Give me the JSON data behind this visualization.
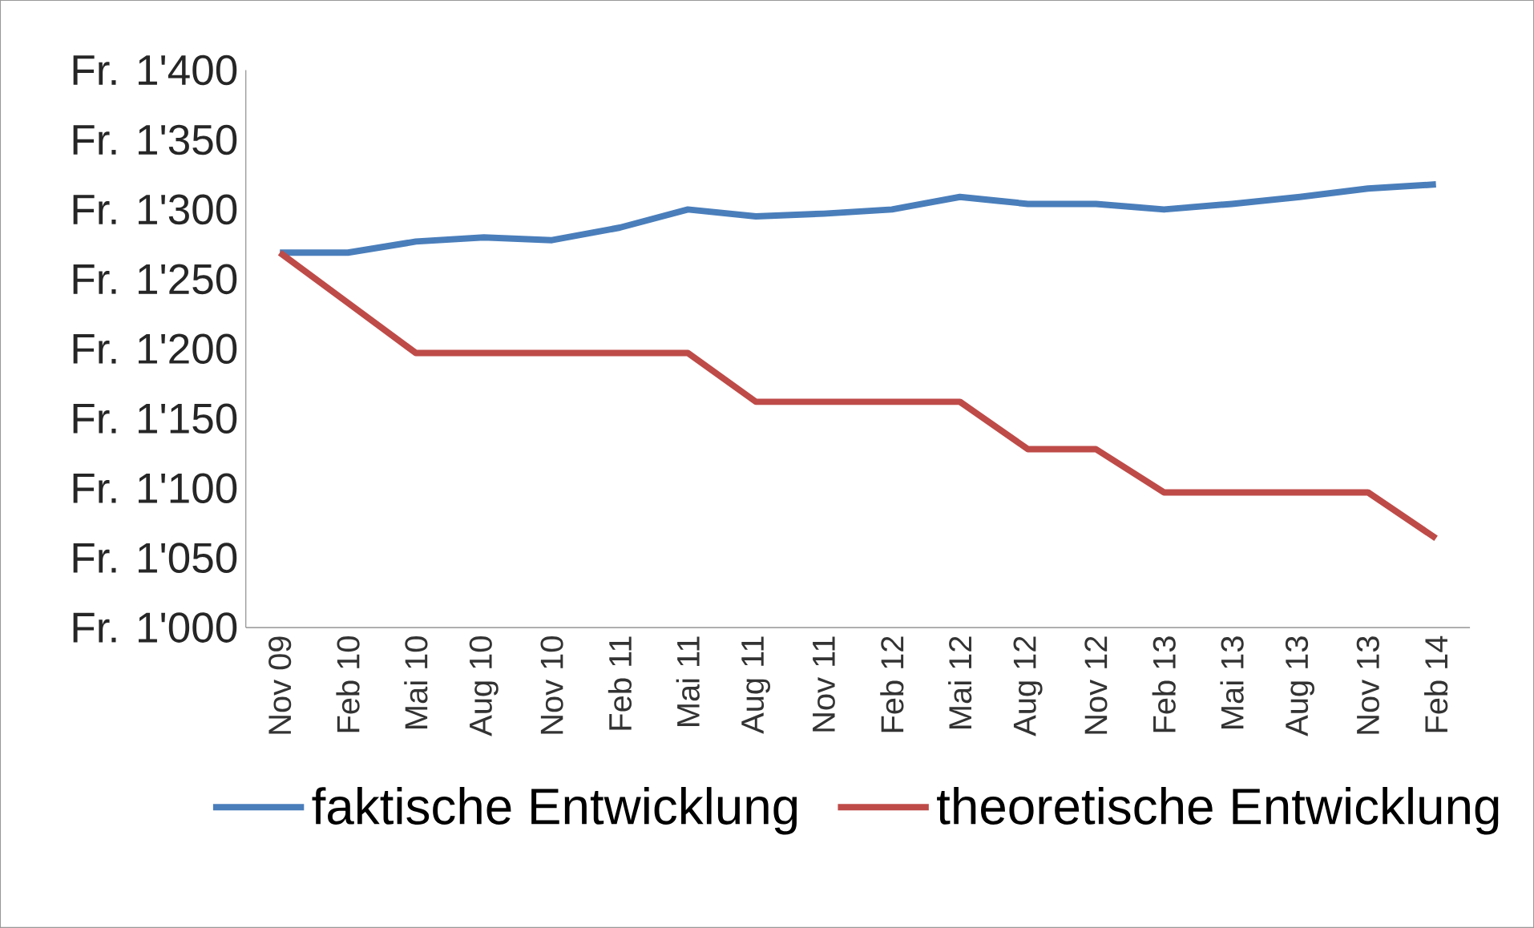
{
  "chart_data": {
    "type": "line",
    "categories": [
      "Nov 09",
      "Feb 10",
      "Mai 10",
      "Aug 10",
      "Nov 10",
      "Feb 11",
      "Mai 11",
      "Aug 11",
      "Nov 11",
      "Feb 12",
      "Mai 12",
      "Aug 12",
      "Nov 12",
      "Feb 13",
      "Mai 13",
      "Aug 13",
      "Nov 13",
      "Feb 14"
    ],
    "series": [
      {
        "name": "faktische Entwicklung",
        "color": "#4a7ebb",
        "values": [
          1269,
          1269,
          1277,
          1280,
          1278,
          1287,
          1300,
          1295,
          1297,
          1300,
          1309,
          1304,
          1304,
          1300,
          1304,
          1309,
          1315,
          1318
        ]
      },
      {
        "name": "theoretische Entwicklung",
        "color": "#be4b48",
        "values": [
          1269,
          1233,
          1197,
          1197,
          1197,
          1197,
          1197,
          1162,
          1162,
          1162,
          1162,
          1128,
          1128,
          1097,
          1097,
          1097,
          1097,
          1064
        ]
      }
    ],
    "ylim": [
      1000,
      1400
    ],
    "yticks": [
      {
        "value": 1000,
        "label": "Fr. 1'000"
      },
      {
        "value": 1050,
        "label": "Fr. 1'050"
      },
      {
        "value": 1100,
        "label": "Fr. 1'100"
      },
      {
        "value": 1150,
        "label": "Fr. 1'150"
      },
      {
        "value": 1200,
        "label": "Fr. 1'200"
      },
      {
        "value": 1250,
        "label": "Fr. 1'250"
      },
      {
        "value": 1300,
        "label": "Fr. 1'300"
      },
      {
        "value": 1350,
        "label": "Fr. 1'350"
      },
      {
        "value": 1400,
        "label": "Fr. 1'400"
      }
    ],
    "legend": "bottom",
    "grid": false,
    "marker": "none",
    "line_style": "solid"
  }
}
